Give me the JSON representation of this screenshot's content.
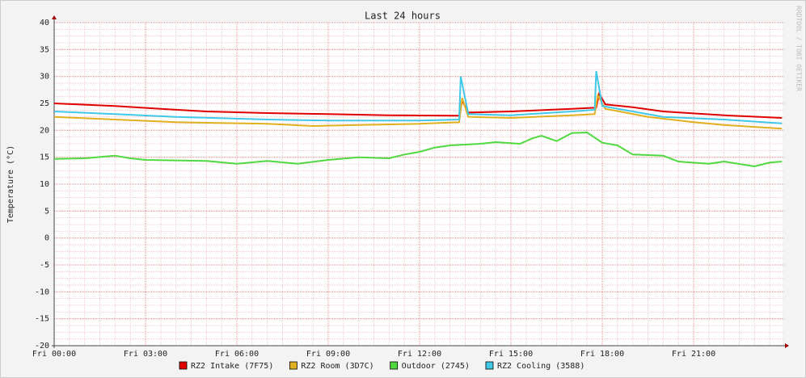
{
  "chart_data": {
    "type": "line",
    "title": "Last 24 hours",
    "y_label": "Temperature (°C)",
    "watermark": "RRDTOOL / TOBI OETIKER",
    "xlim": [
      0,
      24
    ],
    "ylim": [
      -20,
      40
    ],
    "xticks": [
      {
        "value": 0,
        "label": "Fri 00:00"
      },
      {
        "value": 3,
        "label": "Fri 03:00"
      },
      {
        "value": 6,
        "label": "Fri 06:00"
      },
      {
        "value": 9,
        "label": "Fri 09:00"
      },
      {
        "value": 12,
        "label": "Fri 12:00"
      },
      {
        "value": 15,
        "label": "Fri 15:00"
      },
      {
        "value": 18,
        "label": "Fri 18:00"
      },
      {
        "value": 21,
        "label": "Fri 21:00"
      }
    ],
    "yticks": [
      -20,
      -15,
      -10,
      -5,
      0,
      5,
      10,
      15,
      20,
      25,
      30,
      35,
      40
    ],
    "grid": true,
    "series": [
      {
        "name": "RZ2 Intake (7F75)",
        "color": "#e00000",
        "x": [
          0,
          2,
          3.5,
          5,
          7,
          9,
          11,
          13.3,
          13.4,
          13.6,
          15,
          17,
          17.8,
          17.9,
          18.1,
          19,
          20,
          22,
          23.9
        ],
        "values": [
          25,
          24.5,
          24,
          23.5,
          23.2,
          23,
          22.8,
          22.7,
          25.5,
          23.3,
          23.5,
          24,
          24.2,
          26.8,
          24.8,
          24.3,
          23.5,
          22.8,
          22.3
        ]
      },
      {
        "name": "RZ2 Room (3D7C)",
        "color": "#e0b020",
        "x": [
          0,
          2,
          4,
          7,
          8.5,
          10,
          12,
          13.3,
          13.4,
          13.6,
          15,
          17,
          17.75,
          17.85,
          18.1,
          19.5,
          21,
          22,
          23.9
        ],
        "values": [
          22.5,
          22,
          21.5,
          21.2,
          20.8,
          21,
          21.2,
          21.5,
          26,
          22.5,
          22.3,
          22.8,
          23,
          26.5,
          24,
          22.5,
          21.5,
          21,
          20.3
        ]
      },
      {
        "name": "Outdoor (2745)",
        "color": "#50d840",
        "x": [
          0,
          1,
          2,
          2.5,
          3,
          5,
          6,
          7,
          8,
          9,
          10,
          11,
          11.5,
          12,
          12.5,
          13,
          14,
          14.5,
          15.3,
          15.7,
          16,
          16.5,
          17,
          17.5,
          18,
          18.5,
          19,
          20,
          20.5,
          21.5,
          22,
          23,
          23.5,
          23.9
        ],
        "values": [
          14.7,
          14.8,
          15.3,
          14.8,
          14.5,
          14.3,
          13.8,
          14.3,
          13.8,
          14.5,
          15,
          14.8,
          15.5,
          16,
          16.8,
          17.2,
          17.5,
          17.8,
          17.5,
          18.5,
          19,
          18,
          19.5,
          19.6,
          17.7,
          17.2,
          15.5,
          15.3,
          14.2,
          13.8,
          14.2,
          13.3,
          14,
          14.2
        ]
      },
      {
        "name": "RZ2 Cooling (3588)",
        "color": "#40c8e8",
        "x": [
          0,
          2,
          4,
          7,
          9,
          12,
          13.3,
          13.35,
          13.6,
          15,
          17,
          17.75,
          17.8,
          18,
          19,
          20,
          22,
          23.9
        ],
        "values": [
          23.5,
          23,
          22.5,
          22,
          21.8,
          21.8,
          22,
          30,
          23,
          22.8,
          23.5,
          23.8,
          31,
          24.5,
          23.5,
          22.5,
          22,
          21.3
        ]
      }
    ]
  }
}
